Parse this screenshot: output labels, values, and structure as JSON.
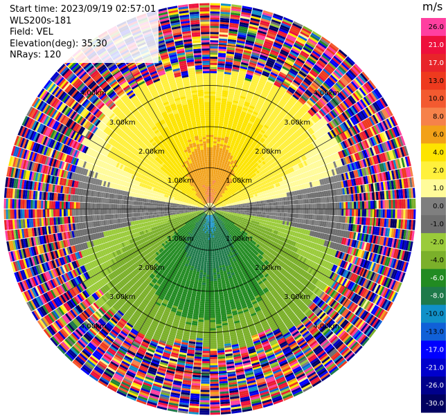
{
  "header": {
    "start_time": "Start time: 2023/09/19 02:57:01",
    "instrument": "WLS200s-181",
    "field": "Field: VEL",
    "elevation": "Elevation(deg): 35.30",
    "nrays": "NRays: 120"
  },
  "colorbar": {
    "unit": "m/s",
    "ticks": [
      "26.0",
      "21.0",
      "17.0",
      "13.0",
      "10.0",
      "8.0",
      "6.0",
      "4.0",
      "2.0",
      "1.0",
      "0.0",
      "-1.0",
      "-2.0",
      "-4.0",
      "-6.0",
      "-8.0",
      "-10.0",
      "-13.0",
      "-17.0",
      "-21.0",
      "-26.0",
      "-30.0"
    ],
    "colors": [
      "#ff3fa0",
      "#ee0f3c",
      "#e8242a",
      "#ee3a1e",
      "#f35a30",
      "#f6824a",
      "#f2a118",
      "#fde400",
      "#fff03c",
      "#fffb9a",
      "#7f7f7f",
      "#6f6f6f",
      "#9acb3a",
      "#7bb02a",
      "#228b22",
      "#1e7a4a",
      "#1090c8",
      "#1060d8",
      "#0000ff",
      "#0000cc",
      "#00008b",
      "#000060"
    ]
  },
  "ring_labels": [
    "1.00km",
    "2.00km",
    "3.00km",
    "4.00km"
  ],
  "chart_data": {
    "type": "heatmap",
    "title": "",
    "projection": "PPI",
    "field": "VEL",
    "units": "m/s",
    "n_rays": 120,
    "elevation_deg": 35.3,
    "range_rings_km": [
      1,
      2,
      3,
      4
    ],
    "max_range_km": 5.0,
    "clim": [
      -30,
      30
    ],
    "description_of_pattern": [
      {
        "sector": "north",
        "range_km": [
          0,
          3.4
        ],
        "value_ms": 4.0
      },
      {
        "sector": "north",
        "range_km": [
          0.6,
          2.0
        ],
        "value_ms": 6.0
      },
      {
        "sector": "north",
        "range_km": [
          0,
          0.9
        ],
        "value_ms": 8.0
      },
      {
        "sector": "south",
        "range_km": [
          0,
          3.4
        ],
        "value_ms": -2.0
      },
      {
        "sector": "south",
        "range_km": [
          0.5,
          2.2
        ],
        "value_ms": -6.0
      },
      {
        "sector": "south",
        "range_km": [
          0,
          0.8
        ],
        "value_ms": -8.0
      },
      {
        "sector": "east-west",
        "range_km": [
          0,
          3.4
        ],
        "value_ms": 0.0
      },
      {
        "sector": "all",
        "range_km": [
          3.4,
          5.0
        ],
        "value_ms": "noise"
      }
    ]
  }
}
